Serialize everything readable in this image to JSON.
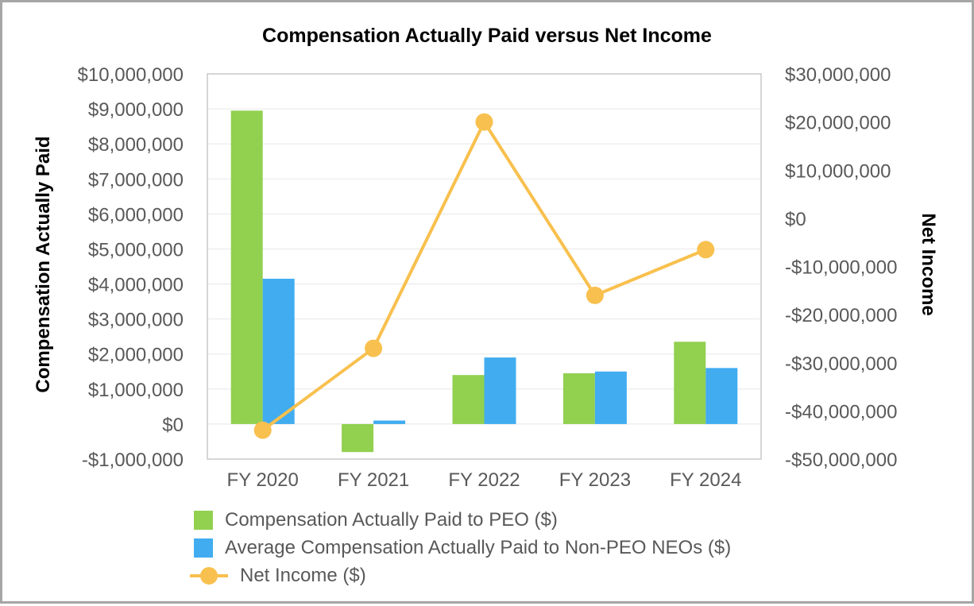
{
  "chart_data": {
    "type": "combo",
    "title": "Compensation Actually Paid versus Net Income",
    "categories": [
      "FY 2020",
      "FY 2021",
      "FY 2022",
      "FY 2023",
      "FY 2024"
    ],
    "series": [
      {
        "name": "Compensation Actually Paid to PEO ($)",
        "type": "bar",
        "axis": "left",
        "color_key": "peo",
        "values": [
          8950000,
          -800000,
          1400000,
          1450000,
          2350000
        ]
      },
      {
        "name": "Average Compensation Actually Paid to Non-PEO NEOs ($)",
        "type": "bar",
        "axis": "left",
        "color_key": "neo",
        "values": [
          4150000,
          100000,
          1900000,
          1500000,
          1600000
        ]
      },
      {
        "name": "Net Income ($)",
        "type": "line",
        "axis": "right",
        "color_key": "net",
        "values": [
          -44000000,
          -27000000,
          20000000,
          -16000000,
          -6500000
        ]
      }
    ],
    "left_axis": {
      "title": "Compensation Actually Paid",
      "min": -1000000,
      "max": 10000000,
      "step": 1000000,
      "format": "currency"
    },
    "right_axis": {
      "title": "Net Income",
      "min": -50000000,
      "max": 30000000,
      "step": 10000000,
      "format": "currency"
    },
    "grid": true,
    "legend_position": "bottom-left",
    "colors": {
      "peo": "#92D050",
      "neo": "#41ACF0",
      "net": "#F8C04E",
      "grid": "#E8E8E8",
      "plot_border": "#C9C9C9",
      "tick_text": "#595959",
      "title_text": "#000000",
      "frame_border": "#A6A6A6"
    }
  }
}
